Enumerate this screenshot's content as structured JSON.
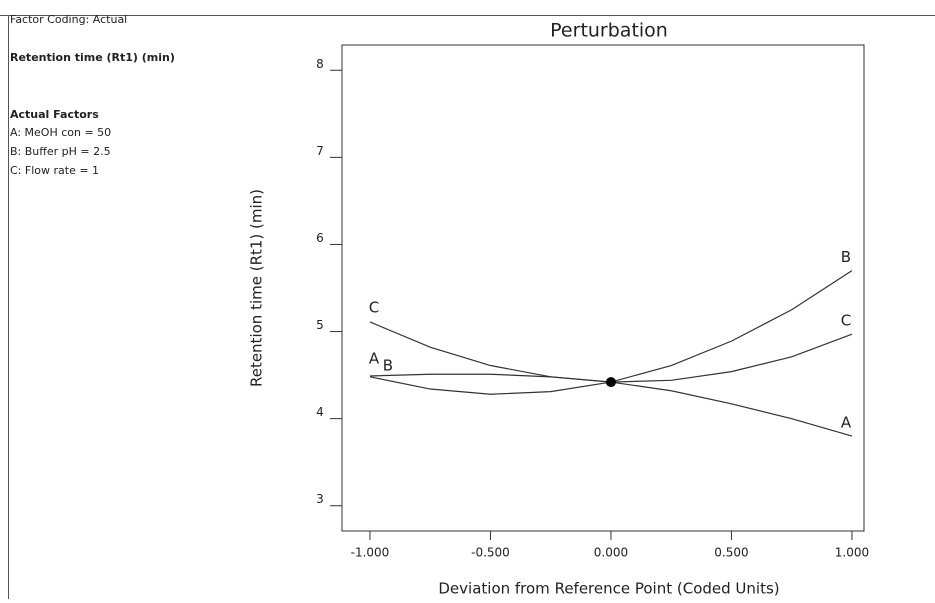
{
  "side_panel": {
    "coding": "Factor Coding: Actual",
    "response": "Retention time (Rt1) (min)",
    "factors_title": "Actual Factors",
    "factors": [
      "A: MeOH con = 50",
      "B: Buffer pH = 2.5",
      "C: Flow rate = 1"
    ]
  },
  "chart_data": {
    "type": "line",
    "title": "Perturbation",
    "x_label": "Deviation from Reference Point (Coded Units)",
    "y_label": "Retention time (Rt1) (min)",
    "x": [
      -1,
      -0.75,
      -0.5,
      -0.25,
      0,
      0.25,
      0.5,
      0.75,
      1
    ],
    "series": [
      {
        "name": "A",
        "color": "#333333",
        "values": [
          4.49,
          4.51,
          4.51,
          4.48,
          4.42,
          4.32,
          4.17,
          4.0,
          3.8
        ]
      },
      {
        "name": "B",
        "color": "#333333",
        "values": [
          4.48,
          4.34,
          4.28,
          4.31,
          4.42,
          4.61,
          4.89,
          5.25,
          5.7
        ]
      },
      {
        "name": "C",
        "color": "#333333",
        "values": [
          5.11,
          4.82,
          4.61,
          4.48,
          4.42,
          4.44,
          4.54,
          4.71,
          4.97
        ]
      }
    ],
    "reference_point": {
      "x": 0,
      "y": 4.42
    },
    "xlim": [
      -1.116,
      1.05
    ],
    "ylim": [
      2.71,
      8.29
    ],
    "xticks": [
      {
        "value": -1,
        "label": "-1.000"
      },
      {
        "value": -0.5,
        "label": "-0.500"
      },
      {
        "value": 0,
        "label": "0.000"
      },
      {
        "value": 0.5,
        "label": "0.500"
      },
      {
        "value": 1,
        "label": "1.000"
      }
    ],
    "yticks": [
      3,
      4,
      5,
      6,
      7,
      8
    ],
    "grid": false
  }
}
